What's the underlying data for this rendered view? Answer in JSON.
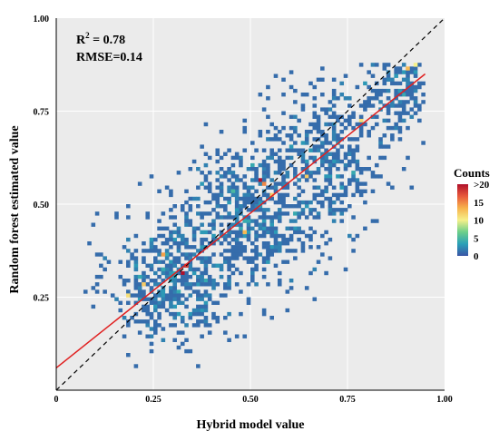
{
  "chart_data": {
    "type": "heatmap",
    "subtype": "binned density scatter",
    "xlabel": "Hybrid model value",
    "ylabel": "Random forest estimated value",
    "xlim": [
      0,
      1
    ],
    "ylim": [
      0,
      1
    ],
    "xticks": [
      {
        "value": 0,
        "label": "0"
      },
      {
        "value": 0.25,
        "label": "0.25"
      },
      {
        "value": 0.5,
        "label": "0.50"
      },
      {
        "value": 0.75,
        "label": "0.75"
      },
      {
        "value": 1,
        "label": "1.00"
      }
    ],
    "yticks": [
      {
        "value": 0.25,
        "label": "0.25"
      },
      {
        "value": 0.5,
        "label": "0.50"
      },
      {
        "value": 0.75,
        "label": "0.75"
      },
      {
        "value": 1,
        "label": "1.00"
      }
    ],
    "grid": true,
    "background_color": "#ebebeb",
    "bin_size": 0.01,
    "colormap": [
      "#3a55a6",
      "#2aa0b8",
      "#6ccf8a",
      "#f6f08a",
      "#f7b34c",
      "#e8593c",
      "#b0102a"
    ],
    "legend": {
      "title": "Counts",
      "labels": [
        ">20",
        "15",
        "10",
        "5",
        "0"
      ],
      "placement": "right"
    },
    "stats": {
      "r2_prefix": "R",
      "r2_superscript": "2",
      "r2_text": " = 0.78",
      "rmse_text": "RMSE=0.14"
    },
    "reference_line": {
      "type": "1:1",
      "style": "dashed",
      "color": "#000000",
      "x": [
        0,
        1
      ],
      "y": [
        0,
        1
      ]
    },
    "fit_line": {
      "type": "linear",
      "color": "#e02020",
      "x": [
        0,
        0.95
      ],
      "y": [
        0.06,
        0.85
      ]
    },
    "point_cloud": {
      "description_free": true,
      "clusters": [
        {
          "cx": 0.3,
          "cy": 0.3,
          "sx": 0.08,
          "sy": 0.09,
          "n": 520
        },
        {
          "cx": 0.5,
          "cy": 0.47,
          "sx": 0.09,
          "sy": 0.1,
          "n": 620
        },
        {
          "cx": 0.7,
          "cy": 0.63,
          "sx": 0.08,
          "sy": 0.1,
          "n": 420
        },
        {
          "cx": 0.88,
          "cy": 0.81,
          "sx": 0.05,
          "sy": 0.06,
          "n": 180
        }
      ],
      "hotspots": [
        {
          "x": 0.33,
          "y": 0.33,
          "count": 18
        },
        {
          "x": 0.32,
          "y": 0.31,
          "count": 22
        },
        {
          "x": 0.27,
          "y": 0.36,
          "count": 14
        },
        {
          "x": 0.52,
          "y": 0.57,
          "count": 21
        },
        {
          "x": 0.53,
          "y": 0.55,
          "count": 15
        },
        {
          "x": 0.48,
          "y": 0.42,
          "count": 13
        },
        {
          "x": 0.55,
          "y": 0.52,
          "count": 12
        },
        {
          "x": 0.9,
          "y": 0.86,
          "count": 13
        },
        {
          "x": 0.92,
          "y": 0.87,
          "count": 10
        },
        {
          "x": 0.18,
          "y": 0.25,
          "count": 11
        },
        {
          "x": 0.22,
          "y": 0.28,
          "count": 12
        },
        {
          "x": 0.64,
          "y": 0.58,
          "count": 12
        },
        {
          "x": 0.78,
          "y": 0.72,
          "count": 11
        }
      ]
    }
  }
}
